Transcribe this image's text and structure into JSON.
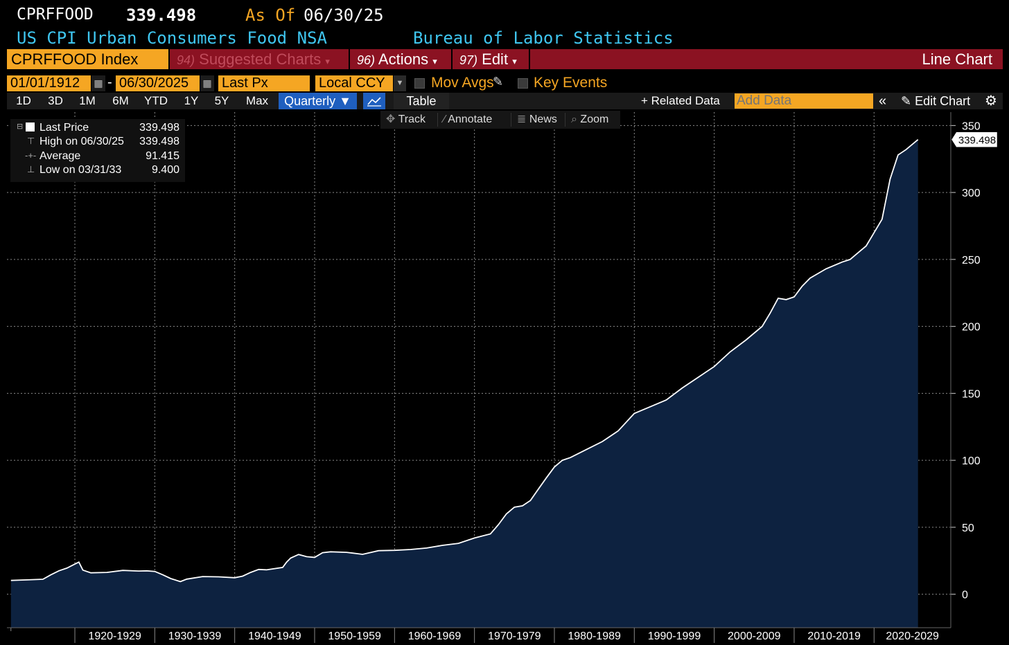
{
  "header": {
    "ticker": "CPRFFOOD",
    "price": "339.498",
    "as_of_label": "As Of",
    "as_of_date": "06/30/25",
    "description": "US CPI Urban Consumers Food NSA",
    "source": "Bureau of Labor Statistics"
  },
  "menu": {
    "index_field": "CPRFFOOD Index",
    "suggested_num": "94)",
    "suggested_label": "Suggested Charts",
    "actions_num": "96)",
    "actions_label": "Actions",
    "edit_num": "97)",
    "edit_label": "Edit",
    "chart_kind": "Line Chart",
    "dropdown_glyph": "▾"
  },
  "options": {
    "start_date": "01/01/1912",
    "end_date": "06/30/2025",
    "date_separator": "-",
    "field": "Last Px",
    "currency": "Local CCY",
    "mov_avgs": "Mov Avgs",
    "key_events": "Key Events"
  },
  "toolbar": {
    "periods": [
      "1D",
      "3D",
      "1M",
      "6M",
      "YTD",
      "1Y",
      "5Y",
      "Max"
    ],
    "frequency": "Quarterly ▼",
    "table": "Table",
    "related_data": "+ Related Data",
    "add_data_placeholder": "Add Data",
    "collapse": "«",
    "edit_chart": "Edit Chart"
  },
  "tools": {
    "track": "Track",
    "annotate": "Annotate",
    "news": "News",
    "zoom": "Zoom"
  },
  "legend": {
    "last_price_label": "Last Price",
    "last_price_value": "339.498",
    "high_label": "High on 06/30/25",
    "high_value": "339.498",
    "average_label": "Average",
    "average_value": "91.415",
    "low_label": "Low on 03/31/33",
    "low_value": "9.400"
  },
  "colors": {
    "accent_orange": "#f5a623",
    "header_blue": "#3fc6f0",
    "menu_red": "#8b1222",
    "area_fill": "#0d2240",
    "line": "#ffffff"
  },
  "chart_data": {
    "type": "area",
    "title": "US CPI Urban Consumers Food NSA",
    "series_name": "CPRFFOOD Index",
    "frequency": "Quarterly",
    "last_value_label": "339.498",
    "ylim": [
      -25,
      360
    ],
    "yticks": [
      0,
      50,
      100,
      150,
      200,
      250,
      300,
      350
    ],
    "xlim": [
      1911.5,
      2029.6
    ],
    "categories": [
      "1920-1929",
      "1930-1939",
      "1940-1949",
      "1950-1959",
      "1960-1969",
      "1970-1979",
      "1980-1989",
      "1990-1999",
      "2000-2009",
      "2010-2019",
      "2020-2029"
    ],
    "x": [
      1912,
      1914,
      1916,
      1917,
      1918,
      1919,
      1920,
      1920.5,
      1921,
      1922,
      1924,
      1926,
      1928,
      1929,
      1930,
      1931,
      1932,
      1933.2,
      1934,
      1936,
      1938,
      1940,
      1941,
      1942,
      1943,
      1944,
      1946,
      1946.5,
      1947,
      1948,
      1949,
      1950,
      1951,
      1952,
      1954,
      1956,
      1958,
      1960,
      1962,
      1964,
      1966,
      1968,
      1970,
      1972,
      1973,
      1974,
      1975,
      1976,
      1977,
      1978,
      1979,
      1980,
      1981,
      1982,
      1984,
      1986,
      1988,
      1990,
      1992,
      1994,
      1996,
      1998,
      2000,
      2002,
      2004,
      2006,
      2007,
      2008,
      2009,
      2010,
      2011,
      2012,
      2014,
      2016,
      2017,
      2018,
      2019,
      2020,
      2021,
      2022,
      2023,
      2024,
      2025.5
    ],
    "values": [
      10.3,
      10.7,
      11.2,
      14.5,
      17.5,
      19.5,
      22.5,
      24.0,
      18.0,
      16.0,
      16.3,
      17.8,
      17.3,
      17.5,
      17.0,
      14.5,
      11.7,
      9.4,
      11.3,
      13.2,
      13.0,
      12.3,
      13.5,
      16.3,
      18.5,
      18.2,
      20.0,
      24.0,
      27.0,
      29.7,
      28.0,
      27.5,
      31.0,
      31.7,
      31.3,
      29.8,
      32.5,
      32.8,
      33.4,
      34.5,
      36.5,
      38.0,
      42.0,
      45.0,
      52.0,
      60.0,
      65.0,
      66.0,
      70.0,
      78.5,
      87.0,
      95.0,
      100.0,
      102.0,
      108.0,
      114.0,
      122.0,
      135.0,
      140.0,
      145.0,
      154.0,
      162.0,
      170.0,
      181.0,
      190.0,
      200.0,
      210.0,
      221.0,
      220.0,
      222.0,
      230.0,
      236.0,
      243.0,
      248.0,
      250.0,
      255.0,
      260.0,
      270.0,
      280.0,
      310.0,
      328.0,
      332.0,
      339.498
    ]
  }
}
